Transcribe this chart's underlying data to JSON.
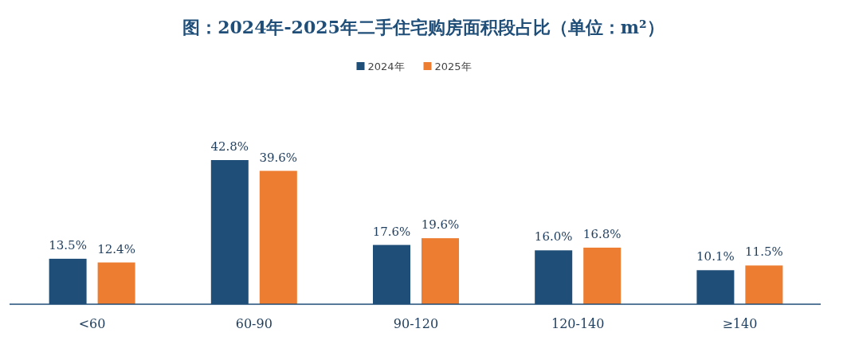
{
  "chart_data": {
    "type": "bar",
    "title": "图：2024年-2025年二手住宅购房面积段占比（单位：m²）",
    "categories": [
      "<60",
      "60-90",
      "90-120",
      "120-140",
      "≥140"
    ],
    "series": [
      {
        "name": "2024年",
        "color": "#1f4e79",
        "values": [
          13.5,
          42.8,
          17.6,
          16.0,
          10.1
        ],
        "value_labels": [
          "13.5%",
          "42.8%",
          "17.6%",
          "16.0%",
          "10.1%"
        ]
      },
      {
        "name": "2025年",
        "color": "#ed7d31",
        "values": [
          12.4,
          39.6,
          19.6,
          16.8,
          11.5
        ],
        "value_labels": [
          "12.4%",
          "39.6%",
          "19.6%",
          "16.8%",
          "11.5%"
        ]
      }
    ],
    "legend": "top"
  }
}
